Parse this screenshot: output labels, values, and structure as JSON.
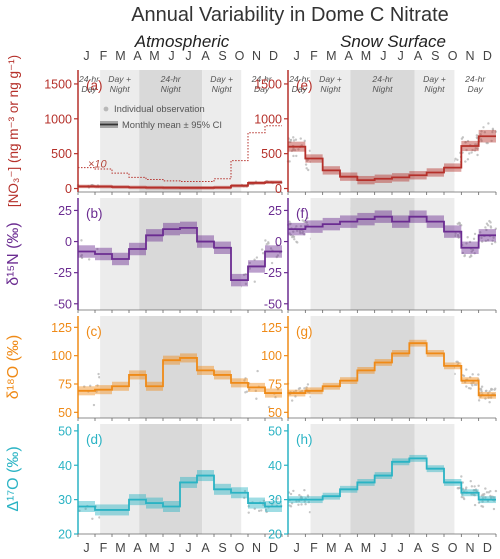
{
  "title": "Annual Variability in Dome C Nitrate",
  "columns": [
    "Atmospheric",
    "Snow Surface"
  ],
  "months": [
    "J",
    "F",
    "M",
    "A",
    "M",
    "J",
    "J",
    "A",
    "S",
    "O",
    "N",
    "D"
  ],
  "periods": [
    {
      "from": 0,
      "to": 1.3,
      "text": [
        "24-hr",
        "Day"
      ]
    },
    {
      "from": 1.3,
      "to": 3.6,
      "text": [
        "Day +",
        "Night"
      ]
    },
    {
      "from": 3.6,
      "to": 7.3,
      "text": [
        "24-hr",
        "Night"
      ]
    },
    {
      "from": 7.3,
      "to": 9.6,
      "text": [
        "Day +",
        "Night"
      ]
    },
    {
      "from": 9.6,
      "to": 12,
      "text": [
        "24-hr",
        "Day"
      ]
    }
  ],
  "legend": {
    "points": "Individual observation",
    "band": "Monthly mean ± 95% CI"
  },
  "x10_label": "×10",
  "colors": {
    "no3": "#b5302a",
    "d15n": "#6b2c91",
    "d18o": "#ef8a17",
    "d17o": "#2ab3c4",
    "points": "#b8b8b8"
  },
  "chart_data": [
    {
      "type": "line",
      "panel": "(a)",
      "column": "Atmospheric",
      "ylabel": "[NO3-] (ng m-3 or ng g-1)",
      "ylim": [
        -50,
        1700
      ],
      "yticks": [
        0,
        500,
        1000,
        1500
      ],
      "series": [
        {
          "values": [
            30,
            28,
            22,
            16,
            13,
            11,
            10,
            10,
            14,
            40,
            80,
            90
          ]
        },
        {
          "values": [
            300,
            280,
            220,
            160,
            130,
            110,
            100,
            100,
            140,
            400,
            800,
            900
          ]
        }
      ]
    },
    {
      "type": "line",
      "panel": "(e)",
      "column": "Snow Surface",
      "ylim": [
        -50,
        1700
      ],
      "series": [
        {
          "values": [
            600,
            430,
            260,
            170,
            120,
            140,
            160,
            190,
            230,
            300,
            610,
            750
          ]
        }
      ]
    },
    {
      "type": "line",
      "panel": "(b)",
      "column": "Atmospheric",
      "ylabel": "δ15N (‰)",
      "ylim": [
        -55,
        35
      ],
      "yticks": [
        -50,
        -25,
        0,
        25
      ],
      "series": [
        {
          "values": [
            -8,
            -10,
            -14,
            -6,
            5,
            10,
            11,
            0,
            -5,
            -31,
            -20,
            -8
          ]
        }
      ]
    },
    {
      "type": "line",
      "panel": "(f)",
      "column": "Snow Surface",
      "ylim": [
        -55,
        35
      ],
      "series": [
        {
          "values": [
            10,
            12,
            14,
            16,
            18,
            20,
            16,
            20,
            16,
            8,
            -5,
            5
          ]
        }
      ]
    },
    {
      "type": "line",
      "panel": "(c)",
      "column": "Atmospheric",
      "ylabel": "δ18O (‰)",
      "ylim": [
        45,
        135
      ],
      "yticks": [
        50,
        75,
        100,
        125
      ],
      "series": [
        {
          "values": [
            69,
            70,
            73,
            83,
            73,
            96,
            98,
            87,
            83,
            76,
            72,
            67
          ]
        }
      ]
    },
    {
      "type": "line",
      "panel": "(g)",
      "column": "Snow Surface",
      "ylim": [
        45,
        135
      ],
      "series": [
        {
          "values": [
            67,
            69,
            73,
            78,
            87,
            94,
            102,
            111,
            102,
            91,
            78,
            65
          ]
        }
      ]
    },
    {
      "type": "line",
      "panel": "(d)",
      "column": "Atmospheric",
      "ylabel": "Δ17O (‰)",
      "ylim": [
        20,
        52
      ],
      "yticks": [
        20,
        30,
        40,
        50
      ],
      "series": [
        {
          "values": [
            28,
            27,
            27,
            30,
            29,
            28,
            35,
            37,
            33,
            32,
            29,
            28
          ]
        }
      ]
    },
    {
      "type": "line",
      "panel": "(h)",
      "column": "Snow Surface",
      "ylim": [
        20,
        52
      ],
      "series": [
        {
          "values": [
            30,
            30,
            31,
            33,
            35,
            37,
            41,
            42,
            39,
            35,
            32,
            30
          ]
        }
      ]
    }
  ]
}
